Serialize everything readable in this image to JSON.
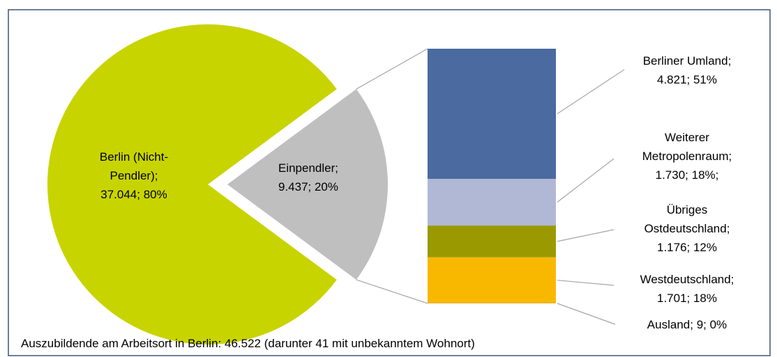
{
  "chart_data": {
    "type": "bar-of-pie",
    "categories": [
      "Berlin (Nicht-Pendler);",
      "Einpendler;"
    ],
    "values": [
      37044,
      9437
    ],
    "value_labels": [
      "37.044; 80%",
      "9.437; 20%"
    ],
    "colors": [
      "#c8d400",
      "#bfbfbf"
    ],
    "breakdown": {
      "categories": [
        "Berliner Umland;",
        "Weiterer Metropolenraum;",
        "Übriges Ostdeutschland;",
        "Westdeutschland;",
        "Ausland;"
      ],
      "values": [
        4821,
        1730,
        1176,
        1701,
        9
      ],
      "value_labels": [
        "4.821; 51%",
        "1.730; 18%;",
        "1.176; 12%",
        "1.701; 18%",
        "9; 0%"
      ],
      "colors": [
        "#4a6aa0",
        "#b0b8d6",
        "#9a9a00",
        "#f9b800",
        "#7f7f7f"
      ]
    },
    "footnote": "Auszubildende am Arbeitsort in Berlin: 46.522 (darunter 41 mit unbekanntem Wohnort)"
  }
}
